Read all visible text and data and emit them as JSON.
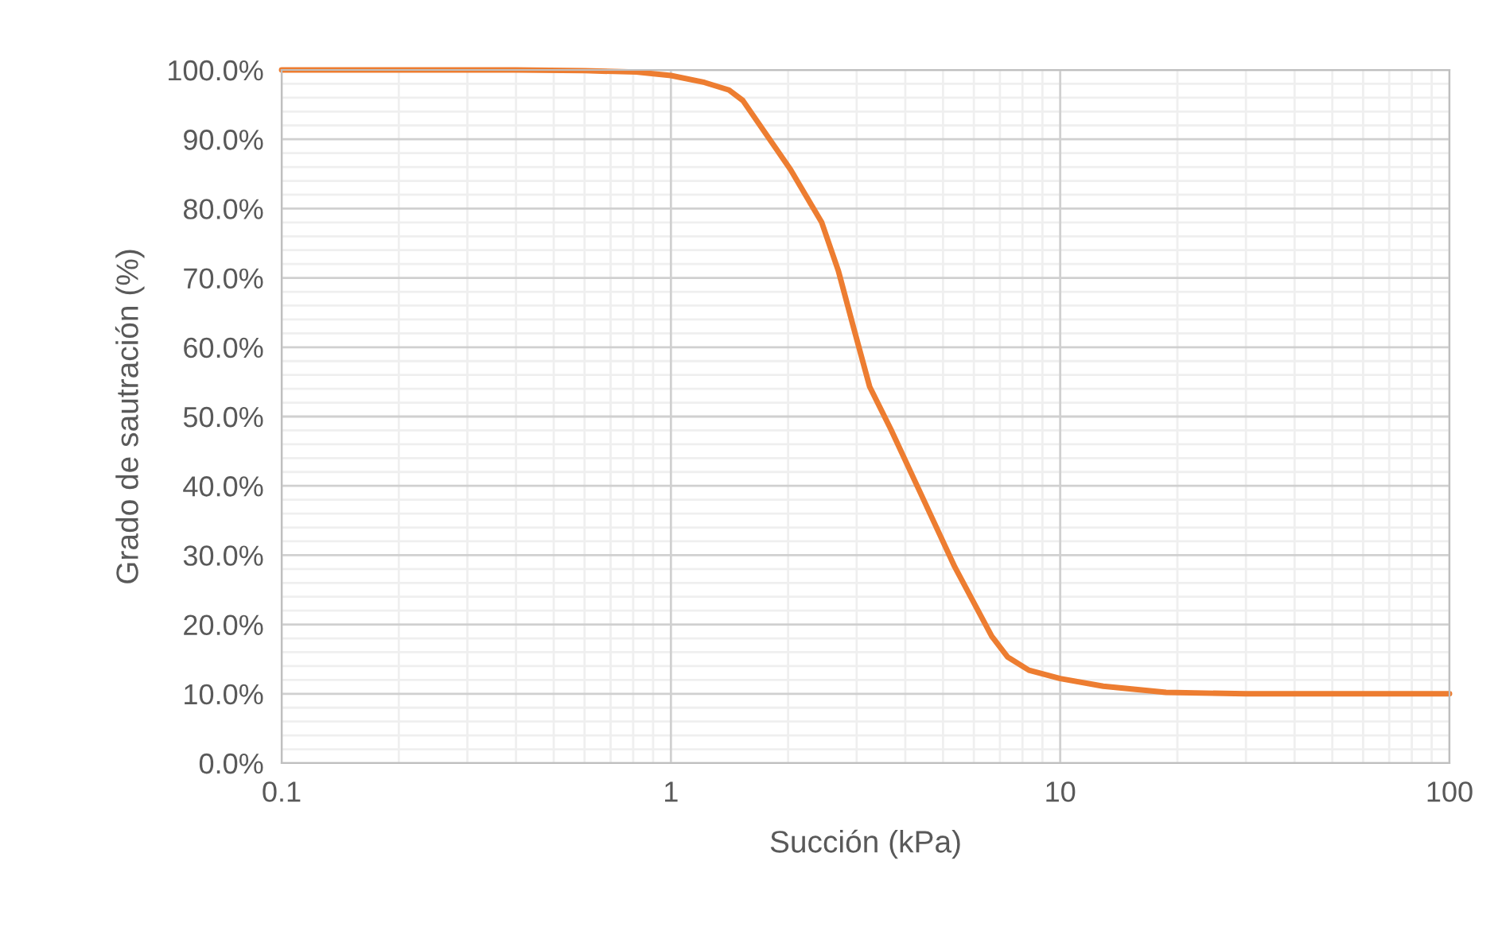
{
  "chart_data": {
    "type": "line",
    "xlabel": "Succión (kPa)",
    "ylabel": "Grado de sautración (%)",
    "series": [
      {
        "color": "#ed7d31",
        "x": [
          0.1,
          0.2,
          0.4,
          0.6,
          0.815,
          1.0,
          1.22,
          1.41,
          1.53,
          2.03,
          2.44,
          2.69,
          2.95,
          3.24,
          3.67,
          4.44,
          5.36,
          6.67,
          7.33,
          8.31,
          10.0,
          12.9,
          18.7,
          30,
          50,
          100
        ],
        "values": [
          100.0,
          100.0,
          100.0,
          99.9,
          99.7,
          99.2,
          98.2,
          97.1,
          95.6,
          85.6,
          78.0,
          71.1,
          62.7,
          54.3,
          48.2,
          38.2,
          28.3,
          18.3,
          15.3,
          13.4,
          12.2,
          11.1,
          10.2,
          10.0,
          10.0,
          10.0
        ]
      }
    ],
    "log": "x",
    "xlim": [
      0.1,
      100
    ],
    "xticks": [
      0.1,
      1,
      10,
      100
    ],
    "ylim": [
      0,
      100
    ],
    "yticks": [
      {
        "value": 0,
        "label": "0.0%"
      },
      {
        "value": 10,
        "label": "10.0%"
      },
      {
        "value": 20,
        "label": "20.0%"
      },
      {
        "value": 30,
        "label": "30.0%"
      },
      {
        "value": 40,
        "label": "40.0%"
      },
      {
        "value": 50,
        "label": "50.0%"
      },
      {
        "value": 60,
        "label": "60.0%"
      },
      {
        "value": 70,
        "label": "70.0%"
      },
      {
        "value": 80,
        "label": "80.0%"
      },
      {
        "value": 90,
        "label": "90.0%"
      },
      {
        "value": 100,
        "label": "100.0%"
      }
    ],
    "grid": true,
    "marker": "none",
    "line_style": "solid"
  }
}
